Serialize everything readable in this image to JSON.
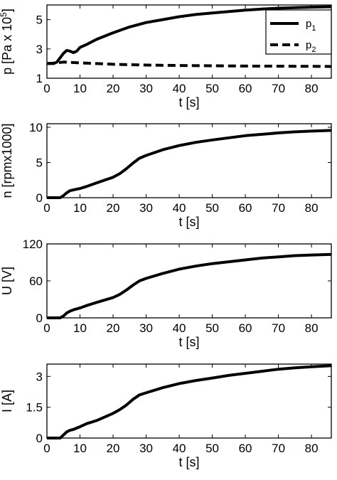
{
  "chart_data": [
    {
      "type": "line",
      "xlabel": "t [s]",
      "ylabel_main": "p [Pa x 10",
      "ylabel_sup": "5",
      "ylabel_tail": "]",
      "xlim": [
        0,
        86
      ],
      "ylim": [
        1,
        6
      ],
      "xticks": [
        0,
        10,
        20,
        30,
        40,
        50,
        60,
        70,
        80
      ],
      "yticks": [
        1,
        3,
        5
      ],
      "ytick_labels": [
        "1",
        "3",
        "5"
      ],
      "legend_position": "top-right",
      "series": [
        {
          "name": "p1",
          "name_main": "p",
          "name_sub": "1",
          "dash": "solid",
          "x": [
            0,
            2,
            3,
            4,
            5,
            6,
            7,
            8,
            9,
            10,
            12,
            15,
            20,
            25,
            30,
            35,
            40,
            45,
            50,
            55,
            60,
            65,
            70,
            75,
            80,
            86
          ],
          "y": [
            2.0,
            2.0,
            2.1,
            2.4,
            2.7,
            2.9,
            2.85,
            2.75,
            2.85,
            3.1,
            3.3,
            3.65,
            4.1,
            4.5,
            4.8,
            5.0,
            5.2,
            5.35,
            5.45,
            5.55,
            5.65,
            5.72,
            5.78,
            5.82,
            5.85,
            5.88
          ]
        },
        {
          "name": "p2",
          "name_main": "p",
          "name_sub": "2",
          "dash": "dashed",
          "x": [
            0,
            3,
            5,
            10,
            15,
            20,
            30,
            40,
            50,
            60,
            70,
            80,
            86
          ],
          "y": [
            2.0,
            2.05,
            2.1,
            2.05,
            2.0,
            1.95,
            1.9,
            1.87,
            1.85,
            1.83,
            1.82,
            1.81,
            1.8
          ]
        }
      ]
    },
    {
      "type": "line",
      "xlabel": "t [s]",
      "ylabel": "n [rpmx1000]",
      "xlim": [
        0,
        86
      ],
      "ylim": [
        0,
        10.5
      ],
      "xticks": [
        0,
        10,
        20,
        30,
        40,
        50,
        60,
        70,
        80
      ],
      "yticks": [
        0,
        5,
        10
      ],
      "ytick_labels": [
        "0",
        "5",
        "10"
      ],
      "series": [
        {
          "dash": "solid",
          "x": [
            0,
            4,
            5,
            6,
            7,
            8,
            10,
            12,
            15,
            20,
            22,
            24,
            26,
            28,
            30,
            35,
            40,
            45,
            50,
            55,
            60,
            65,
            70,
            75,
            80,
            86
          ],
          "y": [
            0,
            0,
            0.3,
            0.7,
            1.0,
            1.1,
            1.3,
            1.6,
            2.1,
            2.9,
            3.4,
            4.1,
            4.9,
            5.6,
            6.0,
            6.8,
            7.4,
            7.85,
            8.2,
            8.5,
            8.8,
            9.0,
            9.2,
            9.35,
            9.45,
            9.55
          ]
        }
      ]
    },
    {
      "type": "line",
      "xlabel": "t [s]",
      "ylabel": "U [V]",
      "xlim": [
        0,
        86
      ],
      "ylim": [
        0,
        120
      ],
      "xticks": [
        0,
        10,
        20,
        30,
        40,
        50,
        60,
        70,
        80
      ],
      "yticks": [
        0,
        60,
        120
      ],
      "ytick_labels": [
        "0",
        "60",
        "120"
      ],
      "series": [
        {
          "dash": "solid",
          "x": [
            0,
            4,
            5,
            6,
            7,
            8,
            10,
            12,
            15,
            20,
            22,
            24,
            26,
            28,
            30,
            35,
            40,
            45,
            50,
            55,
            60,
            65,
            70,
            75,
            80,
            86
          ],
          "y": [
            0,
            0,
            3,
            8,
            11,
            13,
            16,
            20,
            25,
            33,
            38,
            45,
            53,
            60,
            64,
            72,
            79,
            84,
            88,
            91,
            94,
            97,
            99,
            101,
            102,
            103
          ]
        }
      ]
    },
    {
      "type": "line",
      "xlabel": "t [s]",
      "ylabel": "I [A]",
      "xlim": [
        0,
        86
      ],
      "ylim": [
        0,
        3.6
      ],
      "xticks": [
        0,
        10,
        20,
        30,
        40,
        50,
        60,
        70,
        80
      ],
      "yticks": [
        0,
        1.5,
        3
      ],
      "ytick_labels": [
        "0",
        "1.5",
        "3"
      ],
      "series": [
        {
          "dash": "solid",
          "x": [
            0,
            4,
            5,
            6,
            7,
            8,
            10,
            12,
            15,
            20,
            22,
            24,
            26,
            28,
            30,
            35,
            40,
            45,
            50,
            55,
            60,
            65,
            70,
            75,
            80,
            86
          ],
          "y": [
            0,
            0,
            0.15,
            0.3,
            0.38,
            0.42,
            0.55,
            0.7,
            0.85,
            1.2,
            1.38,
            1.6,
            1.88,
            2.1,
            2.2,
            2.45,
            2.65,
            2.8,
            2.92,
            3.05,
            3.15,
            3.25,
            3.35,
            3.42,
            3.47,
            3.52
          ]
        }
      ]
    }
  ]
}
